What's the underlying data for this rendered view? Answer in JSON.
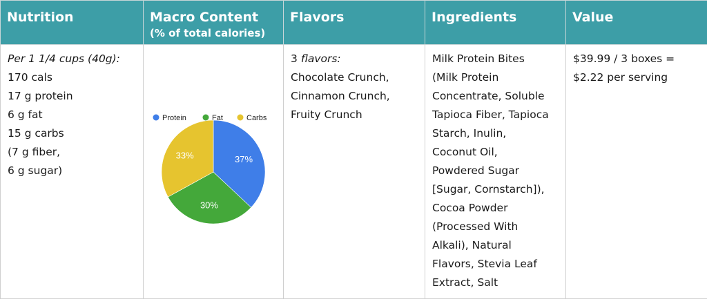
{
  "headers": {
    "nutrition": "Nutrition",
    "macro": "Macro Content",
    "macro_sub": "(% of total calories)",
    "flavors": "Flavors",
    "ingredients": "Ingredients",
    "value": "Value"
  },
  "nutrition": {
    "serving": "Per 1 1/4 cups (40g):",
    "lines": [
      "170 cals",
      "17 g protein",
      "6 g fat",
      "15 g carbs",
      "(7 g fiber,",
      "6 g sugar)"
    ]
  },
  "flavors": {
    "count_num": "3",
    "count_word": "flavors:",
    "items": [
      "Chocolate Crunch,",
      "Cinnamon Crunch,",
      "Fruity Crunch"
    ]
  },
  "ingredients": {
    "lines": [
      "Milk Protein Bites",
      "(Milk Protein",
      "Concentrate, Soluble",
      "Tapioca Fiber, Tapioca",
      "Starch, Inulin,",
      "Coconut Oil,",
      "Powdered Sugar",
      "[Sugar, Cornstarch]),",
      "Cocoa Powder",
      "(Processed With",
      "Alkali), Natural",
      "Flavors, Stevia Leaf",
      "Extract, Salt"
    ]
  },
  "value": {
    "lines": [
      "$39.99 / 3 boxes =",
      "$2.22 per serving"
    ]
  },
  "chart_data": {
    "type": "pie",
    "title": "",
    "legend_position": "top",
    "categories": [
      "Protein",
      "Fat",
      "Carbs"
    ],
    "values": [
      37,
      30,
      33
    ],
    "labels": [
      "37%",
      "30%",
      "33%"
    ],
    "colors": [
      "#3f7ee8",
      "#44a83a",
      "#e6c42f"
    ]
  }
}
